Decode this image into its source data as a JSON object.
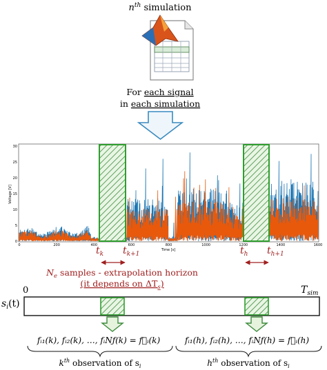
{
  "header": {
    "title_n": "n",
    "title_sup": "th",
    "title_rest": " simulation",
    "for_line1_prefix": "For ",
    "for_line1_link": "each signal",
    "for_line2_prefix": "in ",
    "for_line2_link": "each simulation"
  },
  "icons": {
    "top": "matlab-spreadsheet-icon",
    "arrow": "down-arrow-icon"
  },
  "chart": {
    "ylabel": "Voltage [V]",
    "xlabel": "Time [s]",
    "y_ticks": [
      "30",
      "25",
      "20",
      "15",
      "10",
      "5",
      "0"
    ],
    "x_ticks": [
      "0",
      "200",
      "400",
      "600",
      "800",
      "1000",
      "1200",
      "1400",
      "1600"
    ],
    "colors": {
      "series_a": "#1f77b4",
      "series_b": "#e8590c",
      "window": "#2e9e2e"
    }
  },
  "window_labels": {
    "tk": "t",
    "tk_sub": "k",
    "tk1": "t",
    "tk1_sub": "k+1",
    "th": "t",
    "th_sub": "h",
    "th1": "t",
    "th1_sub": "h+1"
  },
  "horizon": {
    "line1_N": "N",
    "line1_sub": "e",
    "line1_rest": " samples - extrapolation horizon",
    "line2": "(it depends on ΔT",
    "line2_sub": "s",
    "line2_end": ")"
  },
  "timeline": {
    "zero": "0",
    "tsim": "T",
    "tsim_sub": "sim",
    "signal": "s",
    "signal_sub": "i",
    "signal_arg": "(t)"
  },
  "features": {
    "k_formula": "fᵢ₁(k), fᵢ₂(k), …, fᵢNƒ(k) = f⃗ᵢ(k)",
    "h_formula": "fᵢ₁(h), fᵢ₂(h), …, fᵢNƒ(h) = f⃗ᵢ(h)",
    "k_obs_k": "k",
    "k_obs_sup": "th",
    "k_obs_rest": " observation of s",
    "k_obs_sub": "i",
    "h_obs_h": "h",
    "h_obs_sup": "th",
    "h_obs_rest": " observation of s",
    "h_obs_sub": "i"
  }
}
